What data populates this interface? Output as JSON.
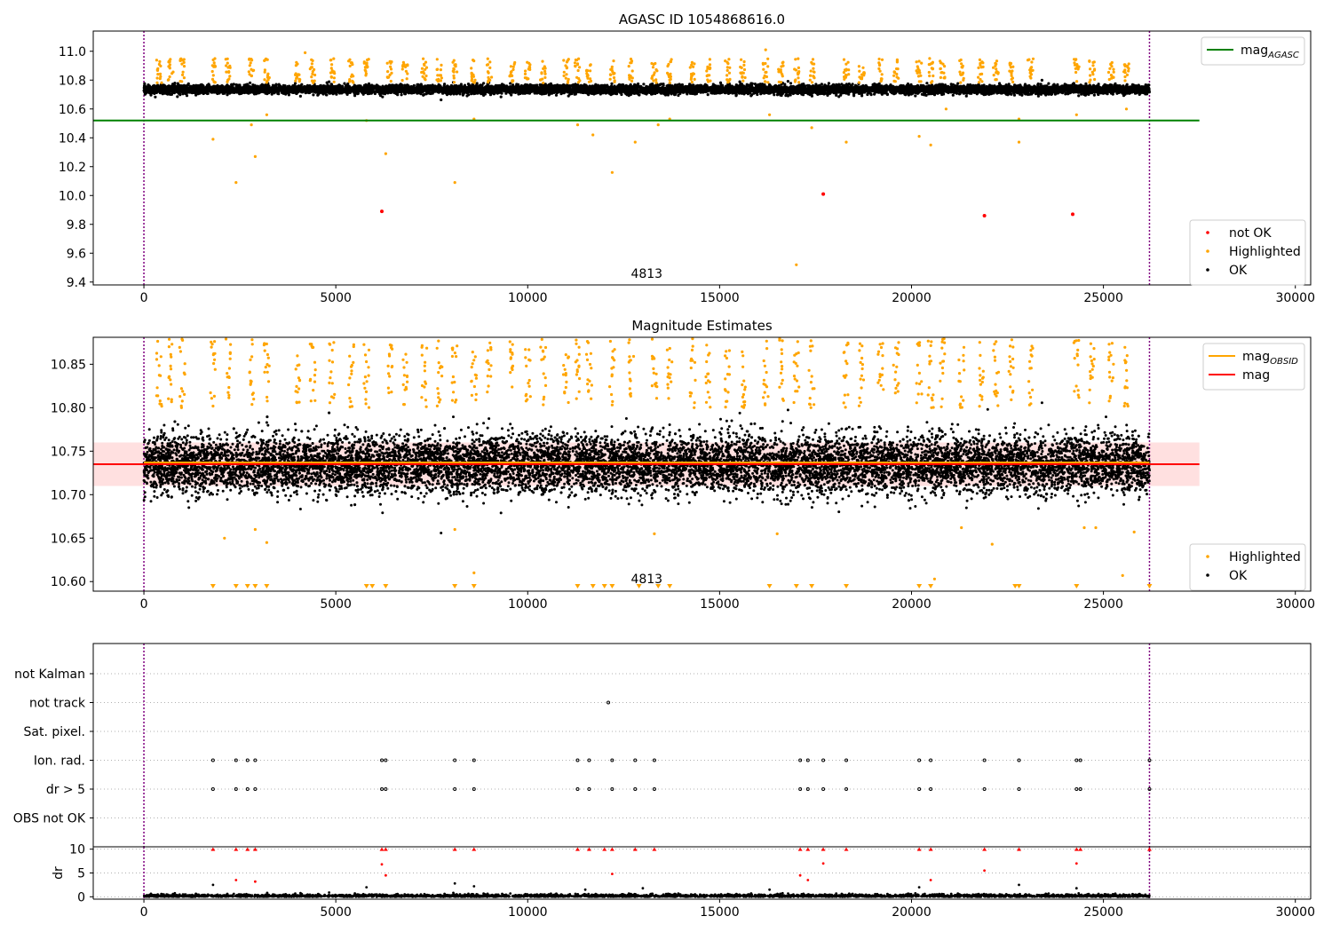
{
  "chart_data": [
    {
      "type": "scatter",
      "title": "AGASC ID 1054868616.0",
      "xlabel": "",
      "ylabel": "",
      "xlim": [
        -1320,
        30400
      ],
      "ylim": [
        9.38,
        11.14
      ],
      "xticks": [
        0,
        5000,
        10000,
        15000,
        20000,
        25000,
        30000
      ],
      "xtick_labels": [
        "0",
        "5000",
        "10000",
        "15000",
        "20000",
        "25000",
        "30000"
      ],
      "yticks": [
        9.4,
        9.6,
        9.8,
        10.0,
        10.2,
        10.4,
        10.6,
        10.8,
        11.0
      ],
      "ytick_labels": [
        "9.4",
        "9.6",
        "9.8",
        "10.0",
        "10.2",
        "10.4",
        "10.6",
        "10.8",
        "11.0"
      ],
      "grid": false,
      "vlines": [
        0,
        26200
      ],
      "annotations": [
        {
          "text": "4813",
          "x": 13100,
          "y": 9.43
        }
      ],
      "hline": {
        "name": "mag_AGASC",
        "y": 10.52,
        "x": [
          -1320,
          27500
        ],
        "color": "#008000"
      },
      "series": [
        {
          "name": "OK",
          "color": "#000000",
          "description": "dense band",
          "x_range": [
            0,
            26200
          ],
          "y_center": 10.735,
          "y_spread": 0.025
        },
        {
          "name": "Highlighted",
          "color": "#ffa500",
          "clusters_x": [
            400,
            700,
            1000,
            1800,
            2200,
            2800,
            3200,
            4000,
            4400,
            4900,
            5400,
            5800,
            6400,
            6800,
            7300,
            7700,
            8100,
            8600,
            9000,
            9600,
            10000,
            10400,
            11000,
            11300,
            11600,
            12200,
            12700,
            13300,
            13700,
            14300,
            14700,
            15200,
            15600,
            16200,
            16600,
            17000,
            17400,
            18300,
            18700,
            19200,
            19600,
            20200,
            20500,
            20800,
            21300,
            21800,
            22200,
            22600,
            23100,
            24300,
            24700,
            25200,
            25600
          ],
          "y_range": [
            10.78,
            10.95
          ],
          "outliers": [
            [
              1800,
              10.39
            ],
            [
              2400,
              10.09
            ],
            [
              2800,
              10.49
            ],
            [
              2900,
              10.27
            ],
            [
              3200,
              10.56
            ],
            [
              5800,
              10.52
            ],
            [
              6300,
              10.29
            ],
            [
              8100,
              10.09
            ],
            [
              8600,
              10.53
            ],
            [
              11300,
              10.49
            ],
            [
              11700,
              10.42
            ],
            [
              12200,
              10.16
            ],
            [
              12800,
              10.37
            ],
            [
              13400,
              10.49
            ],
            [
              13700,
              10.53
            ],
            [
              16300,
              10.56
            ],
            [
              17000,
              9.52
            ],
            [
              17400,
              10.47
            ],
            [
              18300,
              10.37
            ],
            [
              20200,
              10.41
            ],
            [
              20500,
              10.35
            ],
            [
              20900,
              10.6
            ],
            [
              22800,
              10.37
            ],
            [
              22800,
              10.53
            ],
            [
              24300,
              10.56
            ],
            [
              25600,
              10.6
            ],
            [
              16200,
              11.01
            ],
            [
              4200,
              10.99
            ]
          ]
        },
        {
          "name": "not OK",
          "color": "#ff0000",
          "points": [
            [
              6200,
              9.89
            ],
            [
              17700,
              10.01
            ],
            [
              21900,
              9.86
            ],
            [
              24200,
              9.87
            ]
          ]
        }
      ],
      "legends": [
        {
          "position": "upper right",
          "entries": [
            {
              "label": "mag",
              "subscript": "AGASC",
              "kind": "line",
              "color": "#008000"
            }
          ]
        },
        {
          "position": "lower right",
          "entries": [
            {
              "label": "not OK",
              "kind": "marker",
              "color": "#ff0000"
            },
            {
              "label": "Highlighted",
              "kind": "marker",
              "color": "#ffa500"
            },
            {
              "label": "OK",
              "kind": "marker",
              "color": "#000000"
            }
          ]
        }
      ]
    },
    {
      "type": "scatter",
      "title": "Magnitude Estimates",
      "xlabel": "",
      "ylabel": "",
      "xlim": [
        -1320,
        30400
      ],
      "ylim": [
        10.589,
        10.881
      ],
      "xticks": [
        0,
        5000,
        10000,
        15000,
        20000,
        25000,
        30000
      ],
      "xtick_labels": [
        "0",
        "5000",
        "10000",
        "15000",
        "20000",
        "25000",
        "30000"
      ],
      "yticks": [
        10.6,
        10.65,
        10.7,
        10.75,
        10.8,
        10.85
      ],
      "ytick_labels": [
        "10.60",
        "10.65",
        "10.70",
        "10.75",
        "10.80",
        "10.85"
      ],
      "grid": false,
      "vlines": [
        0,
        26200
      ],
      "annotations": [
        {
          "text": "4813",
          "x": 13100,
          "y": 10.598
        }
      ],
      "band": {
        "y_low": 10.71,
        "y_high": 10.76,
        "x": [
          -1320,
          27500
        ],
        "color": "#ffcccc"
      },
      "hlines": [
        {
          "name": "mag_OBSID",
          "y": 10.737,
          "x": [
            0,
            26200
          ],
          "color": "#ffa500"
        },
        {
          "name": "mag",
          "y": 10.735,
          "x": [
            -1320,
            27500
          ],
          "color": "#ff0000"
        }
      ],
      "series": [
        {
          "name": "OK",
          "color": "#000000",
          "description": "dense band",
          "x_range": [
            0,
            26200
          ],
          "y_center": 10.735,
          "y_spread": 0.03
        },
        {
          "name": "Highlighted",
          "color": "#ffa500",
          "y_range": [
            10.8,
            10.88
          ],
          "clipped_at_bottom_x": [
            1800,
            2400,
            2700,
            2900,
            3200,
            5800,
            5950,
            6300,
            8100,
            8600,
            11300,
            11700,
            12000,
            12200,
            12900,
            13400,
            13700,
            16300,
            17000,
            17400,
            18300,
            20200,
            20500,
            22700,
            22800,
            24300,
            26200
          ],
          "outliers": [
            [
              2100,
              10.65
            ],
            [
              2900,
              10.66
            ],
            [
              3200,
              10.645
            ],
            [
              8100,
              10.66
            ],
            [
              8600,
              10.61
            ],
            [
              13300,
              10.655
            ],
            [
              16500,
              10.655
            ],
            [
              20600,
              10.603
            ],
            [
              21300,
              10.662
            ],
            [
              22100,
              10.643
            ],
            [
              24500,
              10.662
            ],
            [
              24800,
              10.662
            ],
            [
              25800,
              10.657
            ],
            [
              25500,
              10.607
            ]
          ]
        }
      ],
      "legends": [
        {
          "position": "upper right",
          "entries": [
            {
              "label": "mag",
              "subscript": "OBSID",
              "kind": "line",
              "color": "#ffa500"
            },
            {
              "label": "mag",
              "kind": "line",
              "color": "#ff0000"
            }
          ]
        },
        {
          "position": "lower right",
          "entries": [
            {
              "label": "Highlighted",
              "kind": "marker",
              "color": "#ffa500"
            },
            {
              "label": "OK",
              "kind": "marker",
              "color": "#000000"
            }
          ]
        }
      ]
    },
    {
      "type": "scatter",
      "title": "",
      "xlabel": "",
      "ylabel": "",
      "xlim": [
        -1320,
        30400
      ],
      "categories": [
        "not Kalman",
        "not track",
        "Sat. pixel.",
        "Ion. rad.",
        "dr > 5",
        "OBS not OK"
      ],
      "grid": "horizontal dotted",
      "vlines": [
        0,
        26200
      ],
      "series": [
        {
          "name": "not track",
          "color": "#000000",
          "points_x": [
            12100
          ]
        },
        {
          "name": "Ion. rad.",
          "color": "#000000",
          "points_x": [
            1800,
            2400,
            2700,
            2900,
            6200,
            6300,
            8100,
            8600,
            11300,
            11600,
            12200,
            12800,
            13300,
            17100,
            17300,
            17700,
            18300,
            20200,
            20500,
            21900,
            22800,
            24300,
            24400,
            26200
          ]
        },
        {
          "name": "dr > 5",
          "color": "#000000",
          "points_x": [
            1800,
            2400,
            2700,
            2900,
            6200,
            6300,
            8100,
            8600,
            11300,
            11600,
            12200,
            12800,
            13300,
            17100,
            17300,
            17700,
            18300,
            20200,
            20500,
            21900,
            22800,
            24300,
            24400,
            26200
          ]
        }
      ]
    },
    {
      "type": "scatter",
      "title": "",
      "xlabel": "",
      "ylabel": "dr",
      "xlim": [
        -1320,
        30400
      ],
      "ylim": [
        -0.5,
        10.5
      ],
      "xticks": [
        0,
        5000,
        10000,
        15000,
        20000,
        25000,
        30000
      ],
      "xtick_labels": [
        "0",
        "5000",
        "10000",
        "15000",
        "20000",
        "25000",
        "30000"
      ],
      "yticks": [
        0,
        5,
        10
      ],
      "ytick_labels": [
        "0",
        "5",
        "10"
      ],
      "grid": "horizontal dotted",
      "vlines": [
        0,
        26200
      ],
      "series": [
        {
          "name": "OK",
          "color": "#000000",
          "description": "band near zero",
          "x_range": [
            0,
            26200
          ],
          "y_range": [
            0,
            0.9
          ],
          "extra": [
            [
              1800,
              2.5
            ],
            [
              5800,
              2.0
            ],
            [
              8100,
              2.8
            ],
            [
              8600,
              2.2
            ],
            [
              11500,
              1.5
            ],
            [
              13000,
              1.8
            ],
            [
              16300,
              1.5
            ],
            [
              20200,
              2.0
            ],
            [
              22800,
              2.5
            ],
            [
              24300,
              1.8
            ]
          ]
        },
        {
          "name": "not OK",
          "color": "#ff0000",
          "clipped_at_top_x": [
            1800,
            2400,
            2700,
            2900,
            6200,
            6300,
            8100,
            8600,
            11300,
            11600,
            12000,
            12200,
            12800,
            13300,
            17100,
            17300,
            17700,
            18300,
            20200,
            20500,
            21900,
            22800,
            24300,
            24400,
            26200
          ],
          "points": [
            [
              2400,
              3.5
            ],
            [
              2900,
              3.2
            ],
            [
              6200,
              6.8
            ],
            [
              6300,
              4.5
            ],
            [
              12200,
              4.8
            ],
            [
              17100,
              4.5
            ],
            [
              17300,
              3.5
            ],
            [
              17700,
              7.0
            ],
            [
              20500,
              3.5
            ],
            [
              21900,
              5.5
            ],
            [
              24300,
              7.0
            ]
          ]
        }
      ]
    }
  ]
}
